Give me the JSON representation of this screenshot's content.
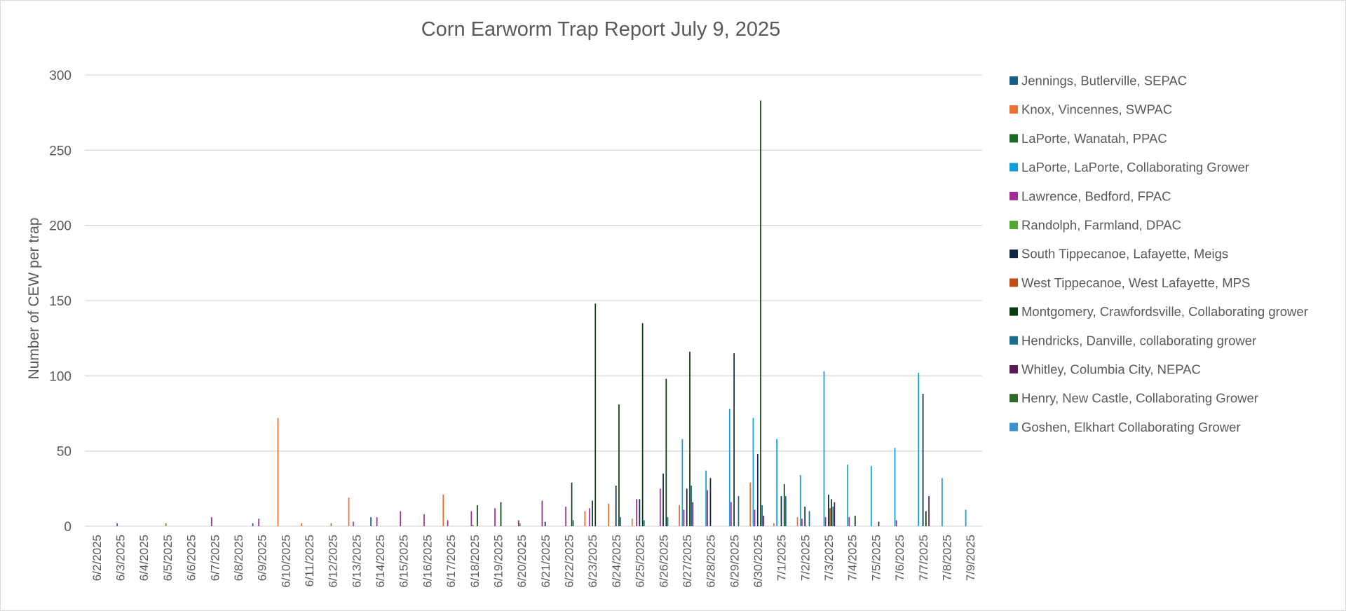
{
  "chart_data": {
    "type": "bar",
    "title": "Corn Earworm Trap Report July 9, 2025",
    "xlabel": "",
    "ylabel": "Number of CEW per trap",
    "ylim": [
      0,
      300
    ],
    "yticks": [
      0,
      50,
      100,
      150,
      200,
      250,
      300
    ],
    "grid": true,
    "legend_position": "right",
    "categories": [
      "6/2/2025",
      "6/3/2025",
      "6/4/2025",
      "6/5/2025",
      "6/6/2025",
      "6/7/2025",
      "6/8/2025",
      "6/9/2025",
      "6/10/2025",
      "6/11/2025",
      "6/12/2025",
      "6/13/2025",
      "6/14/2025",
      "6/15/2025",
      "6/16/2025",
      "6/17/2025",
      "6/18/2025",
      "6/19/2025",
      "6/20/2025",
      "6/21/2025",
      "6/22/2025",
      "6/23/2025",
      "6/24/2025",
      "6/25/2025",
      "6/26/2025",
      "6/27/2025",
      "6/28/2025",
      "6/29/2025",
      "6/30/2025",
      "7/1/2025",
      "7/2/2025",
      "7/3/2025",
      "7/4/2025",
      "7/5/2025",
      "7/6/2025",
      "7/7/2025",
      "7/8/2025",
      "7/9/2025"
    ],
    "series": [
      {
        "name": "Jennings, Butlerville, SEPAC",
        "color": "#156082",
        "values": [
          0,
          0,
          0,
          0,
          0,
          0,
          0,
          2,
          0,
          0,
          0,
          0,
          6,
          0,
          0,
          0,
          0,
          0,
          0,
          0,
          0,
          0,
          0,
          0,
          0,
          0,
          0,
          0,
          0,
          0,
          0,
          0,
          0,
          0,
          0,
          0,
          0,
          0
        ]
      },
      {
        "name": "Knox, Vincennes, SWPAC",
        "color": "#E97132",
        "values": [
          0,
          0,
          0,
          0,
          0,
          0,
          0,
          0,
          72,
          2,
          0,
          19,
          0,
          0,
          0,
          21,
          0,
          0,
          0,
          0,
          0,
          10,
          15,
          5,
          0,
          14,
          0,
          0,
          29,
          2,
          6,
          0,
          0,
          0,
          0,
          0,
          0,
          0
        ]
      },
      {
        "name": "LaPorte, Wanatah, PPAC",
        "color": "#196B24",
        "values": [
          0,
          0,
          0,
          0,
          0,
          0,
          0,
          0,
          0,
          0,
          0,
          0,
          0,
          0,
          0,
          0,
          0,
          0,
          0,
          0,
          0,
          0,
          0,
          0,
          0,
          0,
          0,
          0,
          0,
          0,
          0,
          0,
          0,
          0,
          0,
          0,
          0,
          0
        ]
      },
      {
        "name": "LaPorte, LaPorte, Collaborating Grower",
        "color": "#0F9ED5",
        "values": [
          0,
          0,
          0,
          0,
          0,
          0,
          0,
          0,
          0,
          0,
          0,
          0,
          0,
          0,
          0,
          0,
          0,
          0,
          0,
          0,
          0,
          0,
          0,
          0,
          0,
          58,
          37,
          78,
          72,
          58,
          34,
          103,
          41,
          40,
          52,
          102,
          32,
          11
        ]
      },
      {
        "name": "Lawrence, Bedford, FPAC",
        "color": "#A02B93",
        "values": [
          0,
          2,
          0,
          0,
          0,
          6,
          0,
          5,
          0,
          0,
          0,
          3,
          6,
          10,
          8,
          4,
          10,
          12,
          4,
          17,
          13,
          12,
          0,
          18,
          25,
          11,
          24,
          16,
          11,
          0,
          5,
          6,
          6,
          0,
          4,
          0,
          0,
          0
        ]
      },
      {
        "name": "Randolph, Farmland, DPAC",
        "color": "#4EA72E",
        "values": [
          0,
          0,
          0,
          2,
          0,
          0,
          0,
          0,
          0,
          0,
          2,
          0,
          0,
          0,
          0,
          0,
          1,
          0,
          2,
          0,
          0,
          0,
          0,
          0,
          0,
          0,
          0,
          0,
          0,
          0,
          0,
          0,
          0,
          0,
          0,
          0,
          0,
          0
        ]
      },
      {
        "name": "South Tippecanoe, Lafayette, Meigs",
        "color": "#0E2841",
        "values": [
          0,
          0,
          0,
          0,
          0,
          0,
          0,
          0,
          0,
          0,
          0,
          0,
          0,
          0,
          0,
          0,
          0,
          0,
          0,
          3,
          0,
          17,
          27,
          18,
          35,
          25,
          32,
          115,
          48,
          20,
          13,
          21,
          0,
          0,
          0,
          88,
          0,
          0
        ]
      },
      {
        "name": "West Tippecanoe, West Lafayette, MPS",
        "color": "#C04F15",
        "values": [
          0,
          0,
          0,
          0,
          0,
          0,
          0,
          0,
          0,
          0,
          0,
          0,
          0,
          0,
          0,
          0,
          0,
          0,
          0,
          0,
          0,
          0,
          0,
          0,
          0,
          0,
          0,
          0,
          0,
          0,
          0,
          12,
          0,
          0,
          0,
          0,
          0,
          0
        ]
      },
      {
        "name": "Montgomery, Crawfordsville, Collaborating grower",
        "color": "#0B3A10",
        "values": [
          0,
          0,
          0,
          0,
          0,
          0,
          0,
          0,
          0,
          0,
          0,
          0,
          0,
          0,
          0,
          0,
          14,
          16,
          0,
          0,
          29,
          148,
          81,
          135,
          98,
          116,
          0,
          0,
          283,
          28,
          0,
          18,
          7,
          3,
          0,
          10,
          0,
          0
        ]
      },
      {
        "name": "Hendricks, Danville, collaborating grower",
        "color": "#1B6E8E",
        "values": [
          0,
          0,
          0,
          0,
          0,
          0,
          0,
          0,
          0,
          0,
          0,
          0,
          0,
          0,
          0,
          0,
          0,
          0,
          0,
          0,
          4,
          0,
          6,
          4,
          6,
          27,
          0,
          20,
          14,
          20,
          10,
          13,
          0,
          0,
          0,
          0,
          0,
          0
        ]
      },
      {
        "name": "Whitley, Columbia City, NEPAC",
        "color": "#5C1A54",
        "values": [
          0,
          0,
          0,
          0,
          0,
          0,
          0,
          0,
          0,
          0,
          0,
          0,
          0,
          0,
          0,
          0,
          0,
          0,
          0,
          0,
          0,
          0,
          0,
          0,
          0,
          16,
          0,
          0,
          7,
          0,
          0,
          16,
          0,
          0,
          0,
          20,
          0,
          0
        ]
      },
      {
        "name": "Henry, New Castle, Collaborating Grower",
        "color": "#2F6B2A",
        "values": [
          0,
          0,
          0,
          0,
          0,
          0,
          0,
          0,
          0,
          0,
          0,
          0,
          0,
          0,
          0,
          0,
          0,
          0,
          0,
          0,
          0,
          0,
          0,
          0,
          0,
          0,
          0,
          0,
          0,
          0,
          0,
          0,
          0,
          0,
          0,
          0,
          0,
          0
        ]
      },
      {
        "name": "Goshen, Elkhart Collaborating Grower",
        "color": "#3A93CC",
        "values": [
          0,
          0,
          0,
          0,
          0,
          0,
          0,
          0,
          0,
          0,
          0,
          0,
          0,
          0,
          0,
          0,
          0,
          0,
          0,
          0,
          0,
          0,
          0,
          0,
          0,
          0,
          0,
          0,
          0,
          0,
          0,
          0,
          0,
          0,
          0,
          0,
          0,
          0
        ]
      }
    ]
  }
}
